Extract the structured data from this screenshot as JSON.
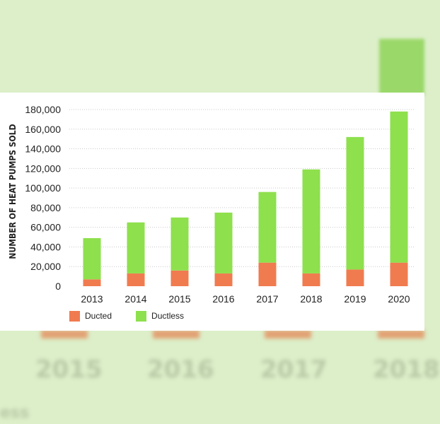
{
  "chart_data": {
    "type": "bar",
    "stacked": true,
    "title": "",
    "xlabel": "",
    "ylabel": "NUMBER OF HEAT PUMPS SOLD",
    "ylim": [
      0,
      180000
    ],
    "yticks": [
      0,
      20000,
      40000,
      60000,
      80000,
      100000,
      120000,
      140000,
      160000,
      180000
    ],
    "ytick_labels": [
      "0",
      "20,000",
      "40,000",
      "60,000",
      "80,000",
      "100,000",
      "120,000",
      "140,000",
      "160,000",
      "180,000"
    ],
    "grid": "horizontal dotted",
    "legend_position": "bottom-left",
    "categories": [
      "2013",
      "2014",
      "2015",
      "2016",
      "2017",
      "2018",
      "2019",
      "2020"
    ],
    "series": [
      {
        "name": "Ducted",
        "color": "#f07b4f",
        "values": [
          7000,
          13000,
          16000,
          13000,
          24000,
          13000,
          17000,
          24000
        ]
      },
      {
        "name": "Ductless",
        "color": "#8ee04d",
        "values": [
          42000,
          52000,
          54000,
          62000,
          72000,
          106000,
          135000,
          154000
        ]
      }
    ]
  },
  "background": {
    "years": [
      "2015",
      "2016",
      "2017",
      "2018"
    ],
    "fragment": "ess"
  }
}
